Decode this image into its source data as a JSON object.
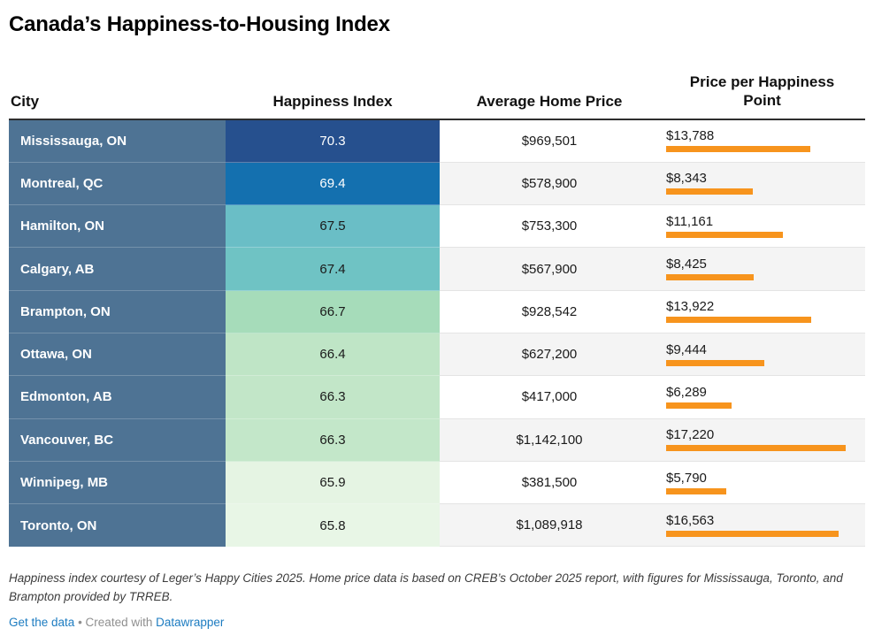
{
  "title": "Canada’s Happiness-to-Housing Index",
  "chart_data": {
    "type": "table",
    "title": "Canada’s Happiness-to-Housing Index",
    "columns": [
      "City",
      "Happiness Index",
      "Average Home Price",
      "Price per Happiness Point"
    ],
    "bar_column": "Price per Happiness Point",
    "bar_axis_max": 17220,
    "rows": [
      {
        "city": "Mississauga, ON",
        "happiness": "70.3",
        "happiness_color": "#26508E",
        "happiness_text_color": "#FFFFFF",
        "price": "$969,501",
        "ppp_label": "$13,788",
        "ppp_value": 13788
      },
      {
        "city": "Montreal, QC",
        "happiness": "69.4",
        "happiness_color": "#1470AF",
        "happiness_text_color": "#FFFFFF",
        "price": "$578,900",
        "ppp_label": "$8,343",
        "ppp_value": 8343
      },
      {
        "city": "Hamilton, ON",
        "happiness": "67.5",
        "happiness_color": "#6ABEC6",
        "happiness_text_color": "#1A1A1A",
        "price": "$753,300",
        "ppp_label": "$11,161",
        "ppp_value": 11161
      },
      {
        "city": "Calgary, AB",
        "happiness": "67.4",
        "happiness_color": "#6FC3C4",
        "happiness_text_color": "#1A1A1A",
        "price": "$567,900",
        "ppp_label": "$8,425",
        "ppp_value": 8425
      },
      {
        "city": "Brampton, ON",
        "happiness": "66.7",
        "happiness_color": "#A6DCBA",
        "happiness_text_color": "#1A1A1A",
        "price": "$928,542",
        "ppp_label": "$13,922",
        "ppp_value": 13922
      },
      {
        "city": "Ottawa, ON",
        "happiness": "66.4",
        "happiness_color": "#BFE5C6",
        "happiness_text_color": "#1A1A1A",
        "price": "$627,200",
        "ppp_label": "$9,444",
        "ppp_value": 9444
      },
      {
        "city": "Edmonton, AB",
        "happiness": "66.3",
        "happiness_color": "#C2E6C8",
        "happiness_text_color": "#1A1A1A",
        "price": "$417,000",
        "ppp_label": "$6,289",
        "ppp_value": 6289
      },
      {
        "city": "Vancouver, BC",
        "happiness": "66.3",
        "happiness_color": "#C3E7C9",
        "happiness_text_color": "#1A1A1A",
        "price": "$1,142,100",
        "ppp_label": "$17,220",
        "ppp_value": 17220
      },
      {
        "city": "Winnipeg, MB",
        "happiness": "65.9",
        "happiness_color": "#E5F4E3",
        "happiness_text_color": "#1A1A1A",
        "price": "$381,500",
        "ppp_label": "$5,790",
        "ppp_value": 5790
      },
      {
        "city": "Toronto, ON",
        "happiness": "65.8",
        "happiness_color": "#E8F6E6",
        "happiness_text_color": "#1A1A1A",
        "price": "$1,089,918",
        "ppp_label": "$16,563",
        "ppp_value": 16563
      }
    ]
  },
  "footer": {
    "note": "Happiness index courtesy of Leger’s Happy Cities 2025. Home price data is based on CREB’s October 2025 report, with figures for Mississauga, Toronto, and Brampton provided by TRREB.",
    "get_data_label": "Get the data",
    "created_with": "• Created with",
    "datawrapper_label": "Datawrapper"
  },
  "colors": {
    "accent_bar": "#F7941D",
    "city_column_bg": "#4E7394",
    "link_blue": "#1D7CC1",
    "row_alt_bg": "#F4F4F4",
    "header_rule": "#2E2E2E",
    "happiness_scale": [
      "#26508E",
      "#1470AF",
      "#6ABEC6",
      "#6FC3C4",
      "#A6DCBA",
      "#BFE5C6",
      "#C2E6C8",
      "#C3E7C9",
      "#E5F4E3",
      "#E8F6E6"
    ]
  }
}
